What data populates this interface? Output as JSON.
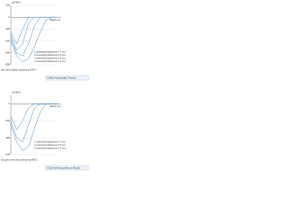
{
  "chart_data": [
    {
      "type": "line",
      "title": "16NiCr4 steel (after Tirenin)",
      "ylabel": "σE MPa",
      "xlabel": "Depth mm",
      "annotation": "gas cementation tempering 180°C",
      "x": [
        0,
        0.2,
        0.4,
        0.6,
        0.8,
        1.0,
        1.2,
        1.4,
        1.6
      ],
      "xlim": [
        0,
        1.6
      ],
      "ylim": [
        -800,
        200
      ],
      "yticks": [
        200,
        0,
        -200,
        -400,
        -600,
        -800
      ],
      "series": [
        {
          "name": "1  cemented thickness 0.4 mm",
          "color": "#4a90c8",
          "values": [
            -250,
            -450,
            -200,
            0,
            0,
            0,
            0,
            0,
            0
          ]
        },
        {
          "name": "2  cemented thickness 0.6 mm",
          "color": "#4a90c8",
          "values": [
            -300,
            -550,
            -450,
            -100,
            0,
            0,
            0,
            0,
            0
          ]
        },
        {
          "name": "3  cemented thickness 0.9 mm",
          "color": "#4a90c8",
          "values": [
            -350,
            -600,
            -650,
            -450,
            -150,
            0,
            0,
            0,
            0
          ]
        },
        {
          "name": "4  cemented thickness 1.2 mm",
          "color": "#4a90c8",
          "values": [
            -400,
            -650,
            -750,
            -700,
            -500,
            -250,
            -50,
            0,
            0
          ]
        }
      ]
    },
    {
      "type": "line",
      "title": "XC10 steel (according to Rocki)",
      "ylabel": "σE MPa",
      "xlabel": "Depth mm",
      "annotation": "oil quenched soft carburizing 840°C",
      "x": [
        0,
        0.25,
        0.5,
        0.75,
        1.0,
        1.25,
        1.5,
        1.75,
        2.0
      ],
      "xlim": [
        0,
        2
      ],
      "ylim": [
        -600,
        100
      ],
      "yticks": [
        0,
        -200,
        -400,
        -600
      ],
      "series": [
        {
          "name": "1  cemented thickness 0.4 mm",
          "color": "#4a90c8",
          "values": [
            -150,
            -300,
            -200,
            -50,
            0,
            0,
            0,
            0,
            0
          ]
        },
        {
          "name": "2  cemented thickness 0.6 mm",
          "color": "#4a90c8",
          "values": [
            -200,
            -400,
            -450,
            -250,
            -50,
            0,
            0,
            0,
            0
          ]
        },
        {
          "name": "3  cemented thickness 0.9 mm",
          "color": "#4a90c8",
          "values": [
            -250,
            -450,
            -550,
            -500,
            -300,
            -100,
            0,
            0,
            0
          ]
        }
      ]
    }
  ]
}
